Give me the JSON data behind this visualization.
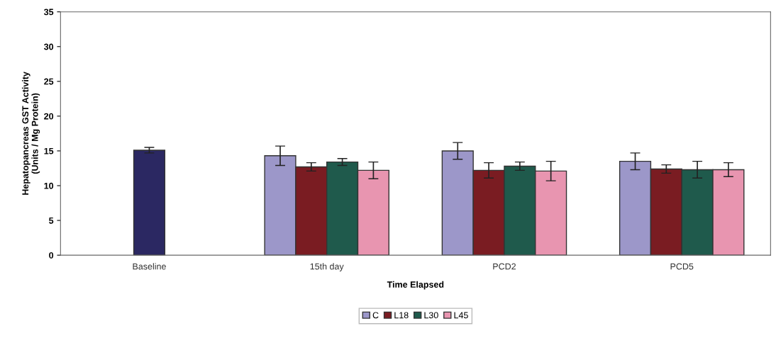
{
  "chart_data": {
    "type": "bar",
    "xlabel": "Time Elapsed",
    "ylabel": "Hepatopancreas GST Activity\n(Units / Mg Protein)",
    "categories": [
      "Baseline",
      "15th day",
      "PCD2",
      "PCD5"
    ],
    "ylim": [
      0,
      35
    ],
    "yticks": [
      0,
      5,
      10,
      15,
      20,
      25,
      30,
      35
    ],
    "grid": false,
    "legend": "bottom",
    "series": [
      {
        "color": "#2b2862",
        "values": [
          15.1,
          null,
          null,
          null
        ],
        "errors": [
          0.4,
          null,
          null,
          null
        ]
      },
      {
        "name": "C",
        "color": "#9c97c9",
        "values": [
          null,
          14.3,
          15.0,
          13.5
        ],
        "errors": [
          null,
          1.4,
          1.2,
          1.2
        ]
      },
      {
        "name": "L18",
        "color": "#7a1c22",
        "values": [
          null,
          12.7,
          12.2,
          12.4
        ],
        "errors": [
          null,
          0.6,
          1.1,
          0.6
        ]
      },
      {
        "name": "L30",
        "color": "#1f5a4c",
        "values": [
          null,
          13.4,
          12.8,
          12.3
        ],
        "errors": [
          null,
          0.5,
          0.6,
          1.2
        ]
      },
      {
        "name": "L45",
        "color": "#e895b0",
        "values": [
          null,
          12.2,
          12.1,
          12.3
        ],
        "errors": [
          null,
          1.2,
          1.4,
          1.0
        ]
      }
    ]
  }
}
